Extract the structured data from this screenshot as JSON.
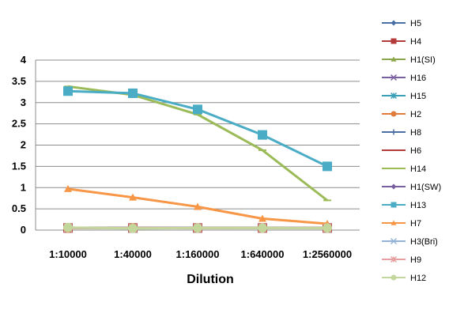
{
  "chart_data": {
    "type": "line",
    "title": "",
    "xlabel": "Dilution",
    "ylabel": "",
    "categories": [
      "1:10000",
      "1:40000",
      "1:160000",
      "1:640000",
      "1:2560000"
    ],
    "ylim": [
      0,
      4
    ],
    "yticks": [
      "0",
      "0.5",
      "1",
      "1.5",
      "2",
      "2.5",
      "3",
      "3.5",
      "4"
    ],
    "grid": "horizontal",
    "legend_position": "right",
    "series": [
      {
        "name": "H5",
        "values": [
          0.05,
          0.05,
          0.05,
          0.05,
          0.05
        ],
        "color": "#4a6fa5",
        "marker": "diamond"
      },
      {
        "name": "H4",
        "values": [
          0.05,
          0.05,
          0.05,
          0.05,
          0.05
        ],
        "color": "#b33b3b",
        "marker": "square"
      },
      {
        "name": "H1(SI)",
        "values": [
          0.05,
          0.05,
          0.05,
          0.05,
          0.05
        ],
        "color": "#8aa64a",
        "marker": "triangle"
      },
      {
        "name": "H16",
        "values": [
          0.05,
          0.05,
          0.05,
          0.05,
          0.05
        ],
        "color": "#7a5fa0",
        "marker": "x"
      },
      {
        "name": "H15",
        "values": [
          0.05,
          0.05,
          0.05,
          0.05,
          0.05
        ],
        "color": "#3aa0b8",
        "marker": "star"
      },
      {
        "name": "H2",
        "values": [
          0.05,
          0.05,
          0.05,
          0.05,
          0.05
        ],
        "color": "#e07b39",
        "marker": "circle"
      },
      {
        "name": "H8",
        "values": [
          0.05,
          0.05,
          0.05,
          0.05,
          0.05
        ],
        "color": "#4a6fa5",
        "marker": "plus"
      },
      {
        "name": "H6",
        "values": [
          0.05,
          0.05,
          0.05,
          0.05,
          0.05
        ],
        "color": "#b33b3b",
        "marker": "dash"
      },
      {
        "name": "H14",
        "values": [
          3.38,
          3.18,
          2.72,
          1.88,
          0.7
        ],
        "color": "#9bbb59",
        "marker": "dash"
      },
      {
        "name": "H1(SW)",
        "values": [
          0.05,
          0.05,
          0.05,
          0.05,
          0.05
        ],
        "color": "#7a5fa0",
        "marker": "diamond"
      },
      {
        "name": "H13",
        "values": [
          3.27,
          3.22,
          2.84,
          2.24,
          1.5
        ],
        "color": "#4bacc6",
        "marker": "square"
      },
      {
        "name": "H7",
        "values": [
          0.97,
          0.77,
          0.55,
          0.27,
          0.15
        ],
        "color": "#f79646",
        "marker": "triangle"
      },
      {
        "name": "H3(Bri)",
        "values": [
          0.05,
          0.05,
          0.05,
          0.05,
          0.05
        ],
        "color": "#95b3d7",
        "marker": "x"
      },
      {
        "name": "H9",
        "values": [
          0.05,
          0.05,
          0.05,
          0.05,
          0.05
        ],
        "color": "#e6a0a0",
        "marker": "star"
      },
      {
        "name": "H12",
        "values": [
          0.06,
          0.04,
          0.05,
          0.05,
          0.05
        ],
        "color": "#c3d69b",
        "marker": "circle"
      }
    ]
  }
}
